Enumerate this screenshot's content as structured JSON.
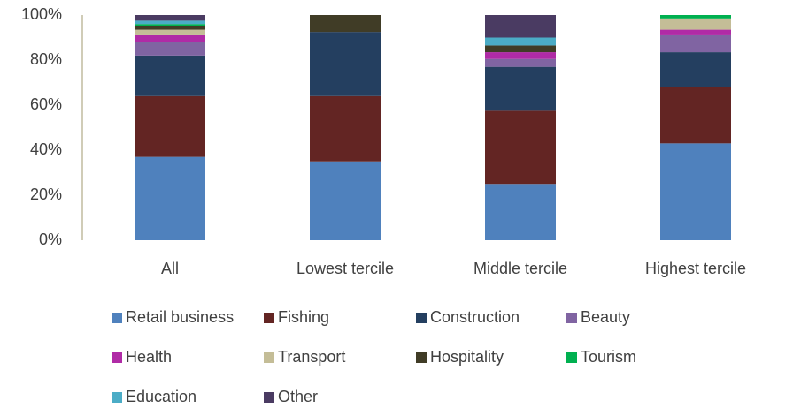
{
  "chart_data": {
    "type": "stacked_bar",
    "categories": [
      "All",
      "Lowest tercile",
      "Middle tercile",
      "Highest tercile"
    ],
    "series": [
      {
        "name": "Retail business",
        "color": "#4f81bd",
        "values": [
          37,
          35,
          25,
          43
        ]
      },
      {
        "name": "Fishing",
        "color": "#632523",
        "values": [
          27,
          29,
          32.5,
          25
        ]
      },
      {
        "name": "Construction",
        "color": "#243f60",
        "values": [
          18,
          28.5,
          19.5,
          15.5
        ]
      },
      {
        "name": "Beauty",
        "color": "#8064a2",
        "values": [
          6,
          0,
          3.5,
          7.5
        ]
      },
      {
        "name": "Health",
        "color": "#b02ba6",
        "values": [
          3,
          0,
          3,
          2.5
        ]
      },
      {
        "name": "Transport",
        "color": "#c4bd97",
        "values": [
          2.5,
          0,
          0,
          5
        ]
      },
      {
        "name": "Hospitality",
        "color": "#403c26",
        "values": [
          1.5,
          7.5,
          3,
          0
        ]
      },
      {
        "name": "Tourism",
        "color": "#00b050",
        "values": [
          1,
          0,
          0,
          1.5
        ]
      },
      {
        "name": "Education",
        "color": "#4bacc6",
        "values": [
          1.5,
          0,
          3.5,
          0
        ]
      },
      {
        "name": "Other",
        "color": "#4a3b62",
        "values": [
          2.5,
          0,
          10,
          0
        ]
      }
    ],
    "ylim": [
      0,
      100
    ],
    "yticks": [
      {
        "value": 0,
        "label": "0%"
      },
      {
        "value": 20,
        "label": "20%"
      },
      {
        "value": 40,
        "label": "40%"
      },
      {
        "value": 60,
        "label": "60%"
      },
      {
        "value": 80,
        "label": "80%"
      },
      {
        "value": 100,
        "label": "100%"
      }
    ],
    "legend": "bottom"
  }
}
